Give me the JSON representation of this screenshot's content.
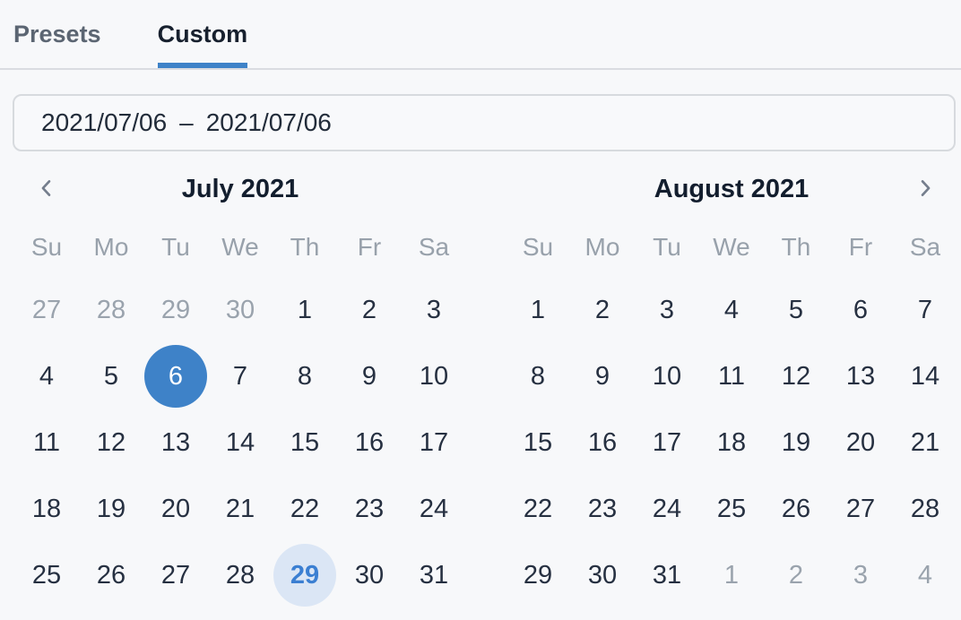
{
  "tabs": {
    "items": [
      {
        "label": "Presets",
        "active": false
      },
      {
        "label": "Custom",
        "active": true
      }
    ]
  },
  "range_input": {
    "start": "2021/07/06",
    "separator": "–",
    "end": "2021/07/06"
  },
  "calendar": {
    "weekdays": [
      "Su",
      "Mo",
      "Tu",
      "We",
      "Th",
      "Fr",
      "Sa"
    ],
    "months": [
      {
        "title": "July 2021",
        "nav": "prev",
        "weeks": [
          [
            {
              "d": 27,
              "s": "muted"
            },
            {
              "d": 28,
              "s": "muted"
            },
            {
              "d": 29,
              "s": "muted"
            },
            {
              "d": 30,
              "s": "muted"
            },
            {
              "d": 1
            },
            {
              "d": 2
            },
            {
              "d": 3
            }
          ],
          [
            {
              "d": 4
            },
            {
              "d": 5
            },
            {
              "d": 6,
              "s": "selected"
            },
            {
              "d": 7
            },
            {
              "d": 8
            },
            {
              "d": 9
            },
            {
              "d": 10
            }
          ],
          [
            {
              "d": 11
            },
            {
              "d": 12
            },
            {
              "d": 13
            },
            {
              "d": 14
            },
            {
              "d": 15
            },
            {
              "d": 16
            },
            {
              "d": 17
            }
          ],
          [
            {
              "d": 18
            },
            {
              "d": 19
            },
            {
              "d": 20
            },
            {
              "d": 21
            },
            {
              "d": 22
            },
            {
              "d": 23
            },
            {
              "d": 24
            }
          ],
          [
            {
              "d": 25
            },
            {
              "d": 26
            },
            {
              "d": 27
            },
            {
              "d": 28
            },
            {
              "d": 29,
              "s": "today"
            },
            {
              "d": 30
            },
            {
              "d": 31
            }
          ]
        ]
      },
      {
        "title": "August 2021",
        "nav": "next",
        "weeks": [
          [
            {
              "d": 1
            },
            {
              "d": 2
            },
            {
              "d": 3
            },
            {
              "d": 4
            },
            {
              "d": 5
            },
            {
              "d": 6
            },
            {
              "d": 7
            }
          ],
          [
            {
              "d": 8
            },
            {
              "d": 9
            },
            {
              "d": 10
            },
            {
              "d": 11
            },
            {
              "d": 12
            },
            {
              "d": 13
            },
            {
              "d": 14
            }
          ],
          [
            {
              "d": 15
            },
            {
              "d": 16
            },
            {
              "d": 17
            },
            {
              "d": 18
            },
            {
              "d": 19
            },
            {
              "d": 20
            },
            {
              "d": 21
            }
          ],
          [
            {
              "d": 22
            },
            {
              "d": 23
            },
            {
              "d": 24
            },
            {
              "d": 25
            },
            {
              "d": 26
            },
            {
              "d": 27
            },
            {
              "d": 28
            }
          ],
          [
            {
              "d": 29
            },
            {
              "d": 30
            },
            {
              "d": 31
            },
            {
              "d": 1,
              "s": "muted"
            },
            {
              "d": 2,
              "s": "muted"
            },
            {
              "d": 3,
              "s": "muted"
            },
            {
              "d": 4,
              "s": "muted"
            }
          ]
        ]
      }
    ]
  },
  "colors": {
    "accent_blue": "#3e82c8",
    "selected_day_bg": "#3e82c8",
    "selected_day_text": "#ffffff",
    "today_bg": "#dbe6f5",
    "today_text": "#3b7fd2",
    "muted_text": "#9aa3ad",
    "dark_text": "#263041",
    "background": "#f7f8fa"
  }
}
